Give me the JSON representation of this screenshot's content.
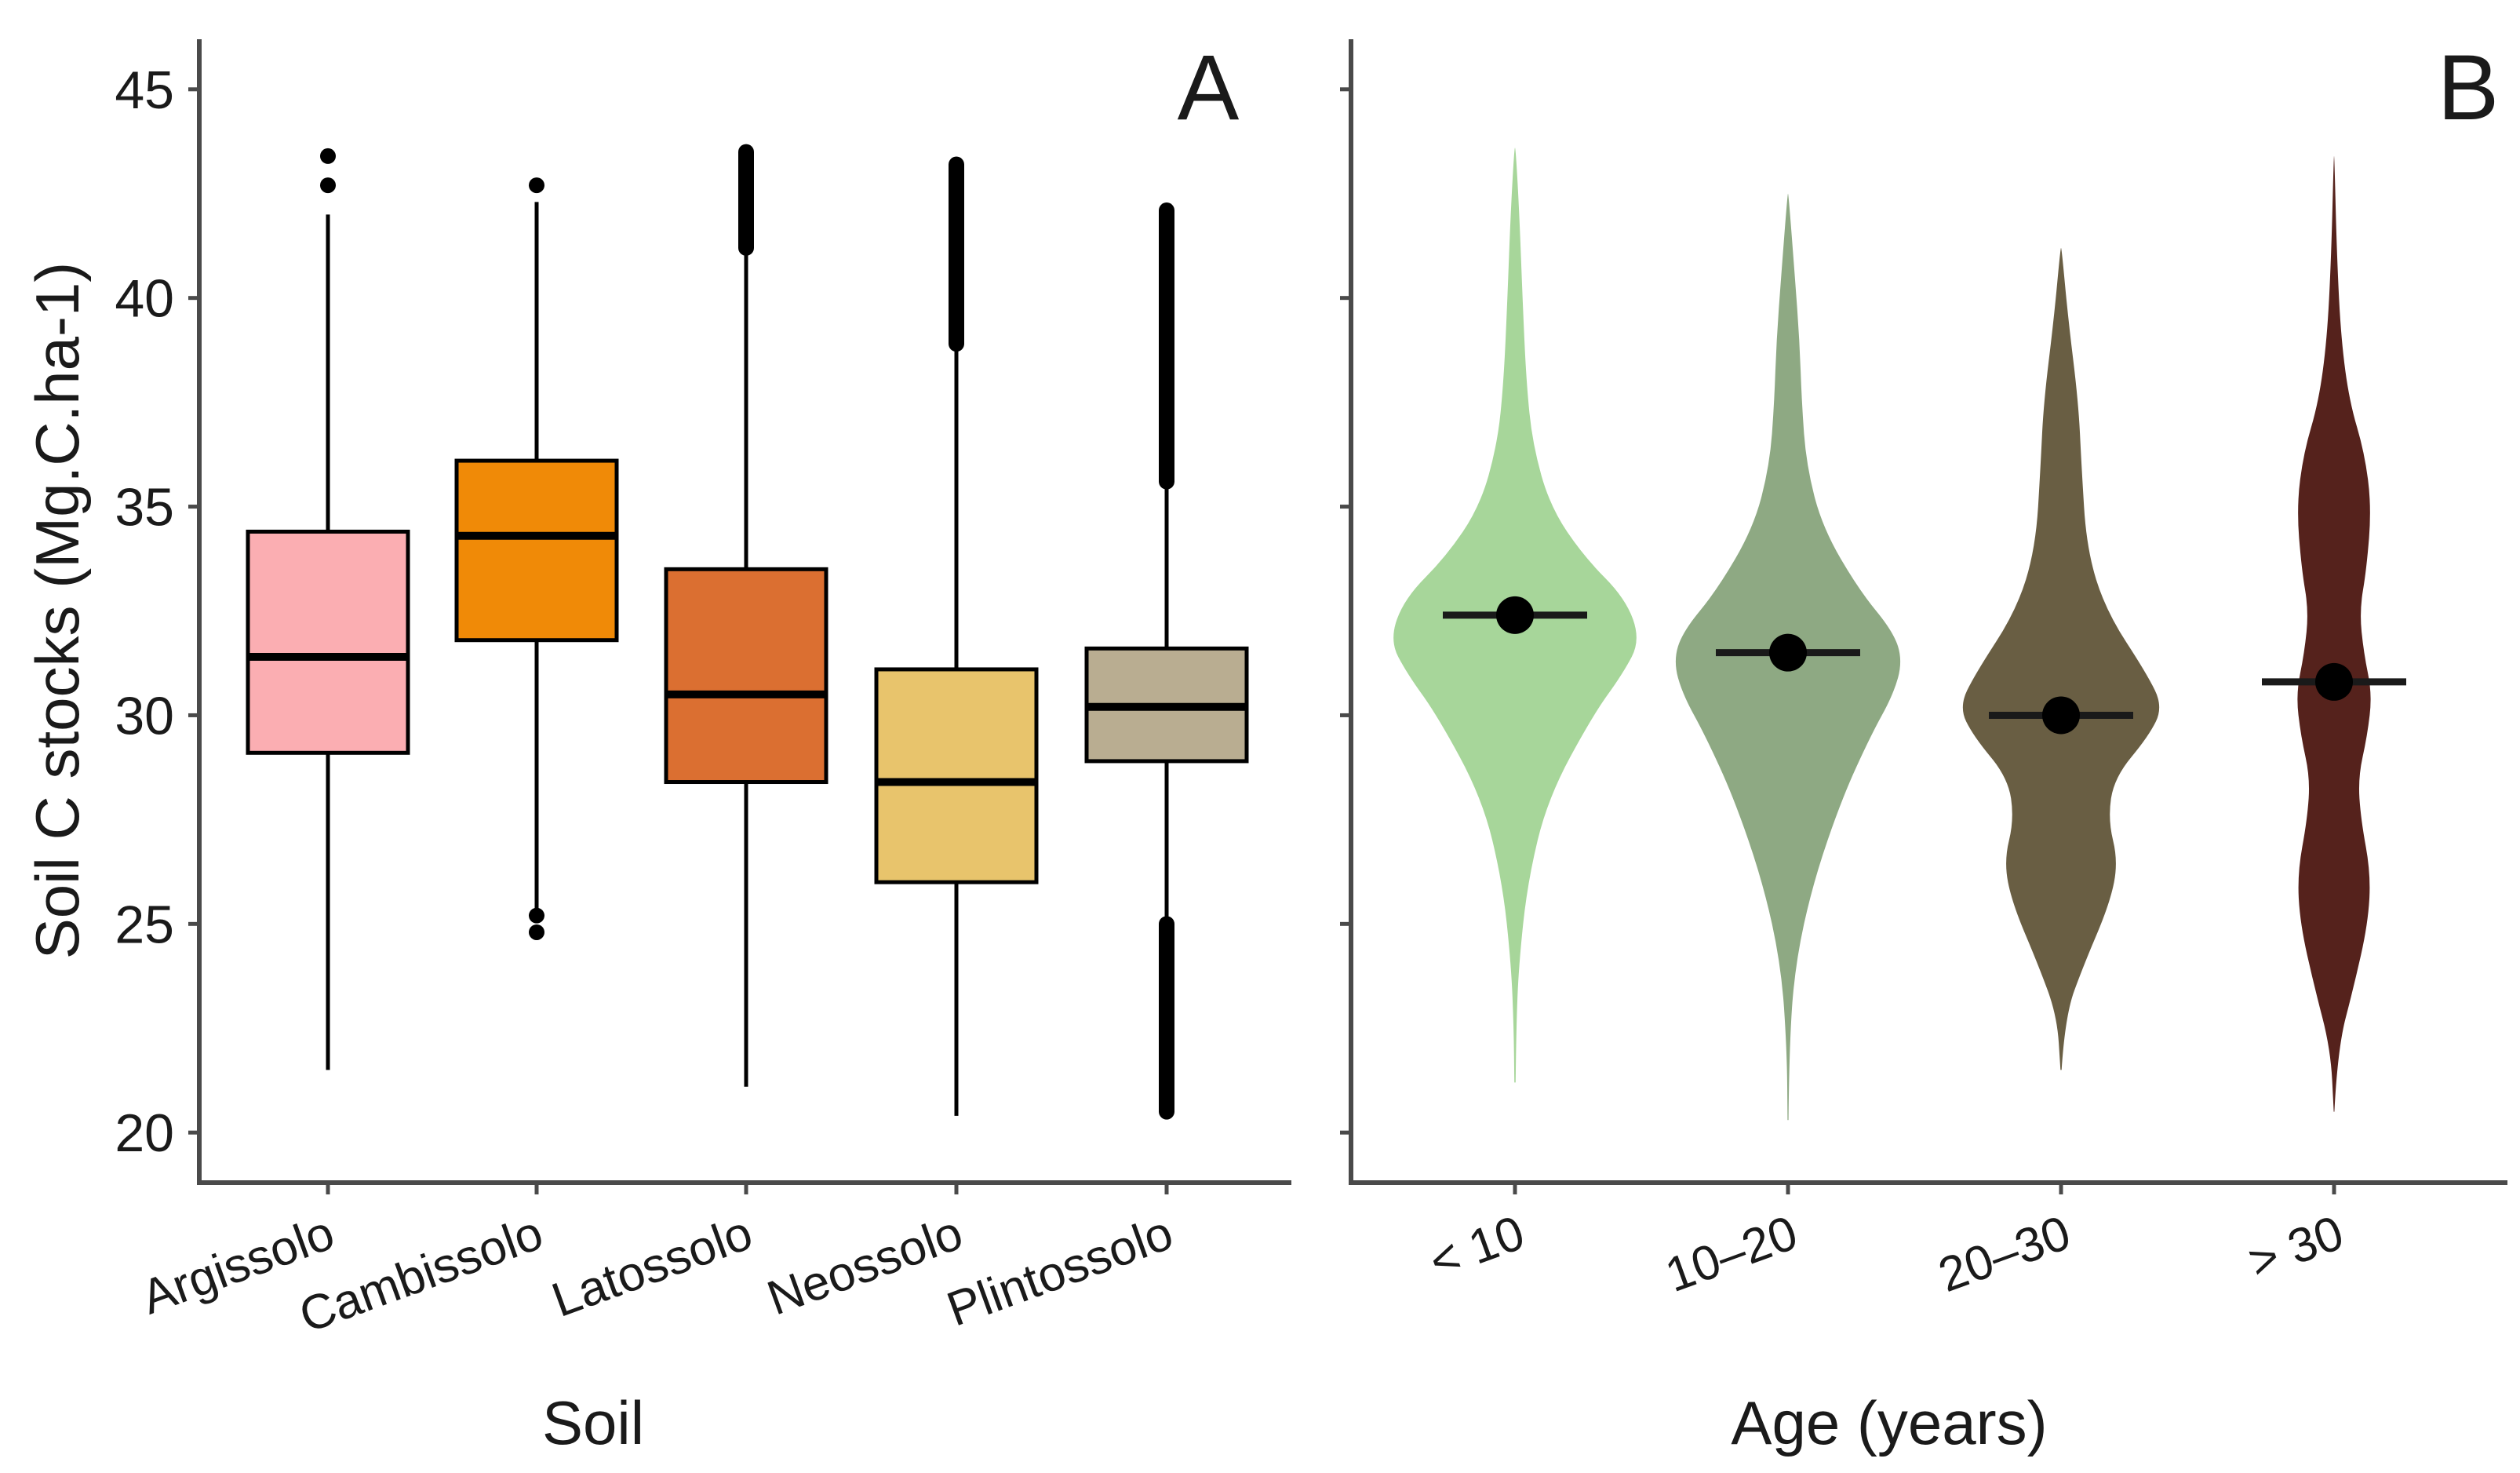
{
  "chart_data": [
    {
      "panel": "A",
      "type": "box",
      "panel_label": "A",
      "xlabel": "Soil",
      "ylabel": "Soil C stocks (Mg.C.ha-1)",
      "ylim": [
        18.8,
        46.2
      ],
      "yticks": [
        20,
        25,
        30,
        35,
        40,
        45
      ],
      "categories": [
        "Argissolo",
        "Cambissolo",
        "Latossolo",
        "Neossolo",
        "Plintossolo"
      ],
      "colors": [
        "#fbaeb2",
        "#f08a07",
        "#db6f31",
        "#e8c46c",
        "#b9ad91"
      ],
      "boxes": [
        {
          "whisker_low": 21.5,
          "q1": 29.1,
          "median": 31.4,
          "q3": 34.4,
          "whisker_high": 42.0,
          "outliers": [
            42.7,
            43.4
          ]
        },
        {
          "whisker_low": 25.1,
          "q1": 31.8,
          "median": 34.3,
          "q3": 36.1,
          "whisker_high": 42.3,
          "outliers": [
            24.8,
            25.2,
            42.7
          ]
        },
        {
          "whisker_low": 21.1,
          "q1": 28.4,
          "median": 30.5,
          "q3": 33.5,
          "whisker_high": 41.1,
          "outliers_band": [
            41.2,
            43.5
          ]
        },
        {
          "whisker_low": 20.4,
          "q1": 26.0,
          "median": 28.4,
          "q3": 31.1,
          "whisker_high": 38.8,
          "outliers_band": [
            38.9,
            43.2
          ]
        },
        {
          "whisker_low": 25.0,
          "q1": 28.9,
          "median": 30.2,
          "q3": 31.6,
          "whisker_high": 35.5,
          "outliers_band_low": [
            20.5,
            25.0
          ],
          "outliers_band_high": [
            35.6,
            42.1
          ]
        }
      ]
    },
    {
      "panel": "B",
      "type": "violin",
      "panel_label": "B",
      "xlabel": "Age (years)",
      "ylim": [
        18.8,
        46.2
      ],
      "categories": [
        "< 10",
        "10–20",
        "20–30",
        "> 30"
      ],
      "colors": [
        "#a7d69a",
        "#8ea983",
        "#695e43",
        "#55221c"
      ],
      "means": [
        32.4,
        31.5,
        30.0,
        30.8
      ],
      "ranges": [
        [
          21.2,
          43.6
        ],
        [
          20.3,
          42.5
        ],
        [
          21.5,
          41.2
        ],
        [
          20.5,
          43.4
        ]
      ],
      "density_profiles": [
        [
          [
            21.2,
            0.005
          ],
          [
            22.5,
            0.01
          ],
          [
            24.0,
            0.03
          ],
          [
            26.0,
            0.1
          ],
          [
            28.0,
            0.26
          ],
          [
            30.0,
            0.62
          ],
          [
            31.0,
            0.86
          ],
          [
            31.8,
            1.0
          ],
          [
            32.8,
            0.88
          ],
          [
            33.8,
            0.55
          ],
          [
            35.0,
            0.28
          ],
          [
            36.5,
            0.14
          ],
          [
            38.0,
            0.09
          ],
          [
            40.0,
            0.06
          ],
          [
            42.0,
            0.035
          ],
          [
            43.6,
            0.005
          ]
        ],
        [
          [
            20.3,
            0.004
          ],
          [
            22.0,
            0.01
          ],
          [
            24.0,
            0.06
          ],
          [
            26.0,
            0.22
          ],
          [
            28.0,
            0.47
          ],
          [
            29.5,
            0.72
          ],
          [
            30.5,
            0.92
          ],
          [
            31.3,
            1.0
          ],
          [
            32.0,
            0.92
          ],
          [
            33.0,
            0.62
          ],
          [
            34.5,
            0.3
          ],
          [
            36.0,
            0.16
          ],
          [
            37.5,
            0.12
          ],
          [
            39.0,
            0.1
          ],
          [
            40.5,
            0.06
          ],
          [
            42.5,
            0.004
          ]
        ],
        [
          [
            21.5,
            0.005
          ],
          [
            22.8,
            0.04
          ],
          [
            24.0,
            0.22
          ],
          [
            25.5,
            0.48
          ],
          [
            26.5,
            0.56
          ],
          [
            27.5,
            0.46
          ],
          [
            28.5,
            0.52
          ],
          [
            29.5,
            0.86
          ],
          [
            30.2,
            1.0
          ],
          [
            31.0,
            0.84
          ],
          [
            32.5,
            0.44
          ],
          [
            34.0,
            0.25
          ],
          [
            36.0,
            0.2
          ],
          [
            37.5,
            0.17
          ],
          [
            39.5,
            0.07
          ],
          [
            41.2,
            0.005
          ]
        ],
        [
          [
            20.5,
            0.004
          ],
          [
            22.0,
            0.05
          ],
          [
            23.5,
            0.28
          ],
          [
            25.0,
            0.48
          ],
          [
            26.2,
            0.52
          ],
          [
            27.5,
            0.38
          ],
          [
            28.5,
            0.34
          ],
          [
            29.5,
            0.47
          ],
          [
            30.5,
            0.54
          ],
          [
            31.5,
            0.42
          ],
          [
            32.5,
            0.36
          ],
          [
            33.5,
            0.46
          ],
          [
            35.0,
            0.53
          ],
          [
            36.3,
            0.43
          ],
          [
            37.5,
            0.22
          ],
          [
            39.0,
            0.1
          ],
          [
            41.0,
            0.04
          ],
          [
            43.4,
            0.004
          ]
        ]
      ]
    }
  ]
}
